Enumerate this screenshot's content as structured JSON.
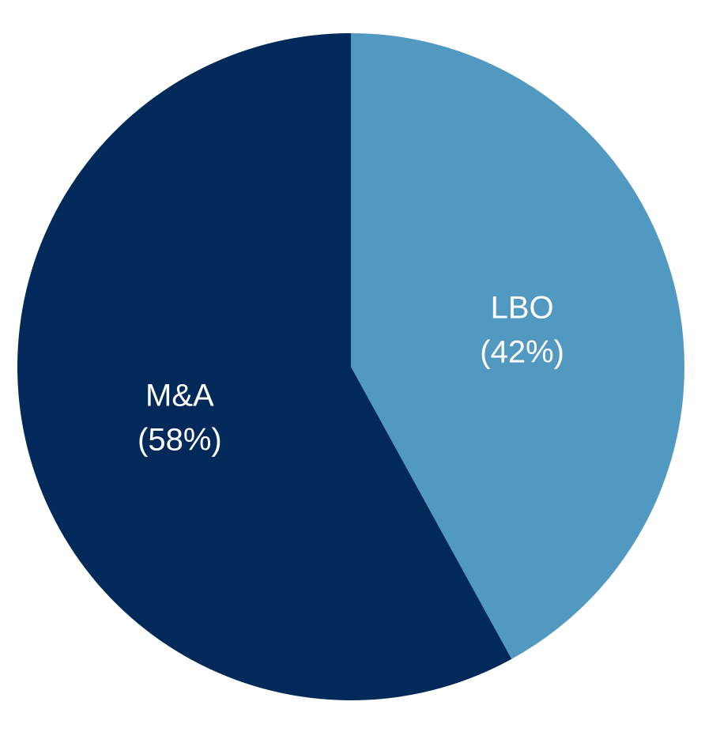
{
  "chart_data": {
    "type": "pie",
    "title": "",
    "slices": [
      {
        "label": "LBO",
        "value": 42,
        "value_label": "(42%)",
        "color": "#5199c1"
      },
      {
        "label": "M&A",
        "value": 58,
        "value_label": "(58%)",
        "color": "#012a5b"
      }
    ],
    "start_angle": "12 o'clock",
    "direction": "clockwise",
    "legend": "none",
    "background": "#ffffff"
  }
}
